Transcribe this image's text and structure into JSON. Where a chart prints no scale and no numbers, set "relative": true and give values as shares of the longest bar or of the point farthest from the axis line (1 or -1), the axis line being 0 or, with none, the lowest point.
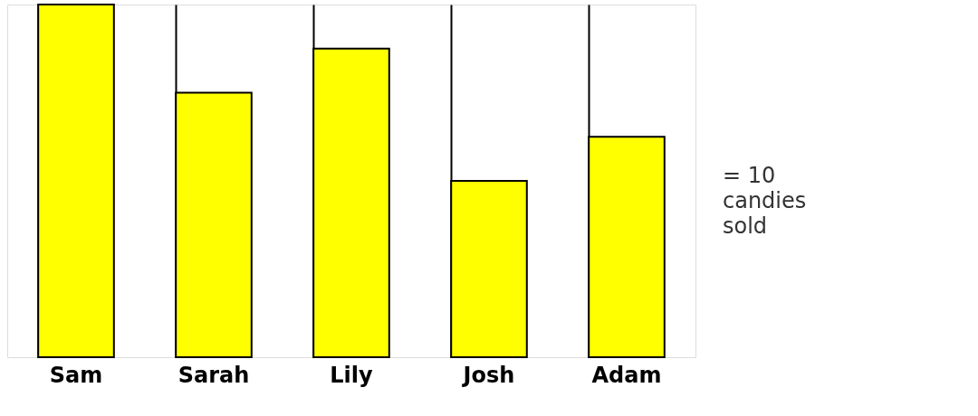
{
  "chart_data": {
    "type": "bar",
    "relative": true,
    "categories": [
      "Sam",
      "Sarah",
      "Lily",
      "Josh",
      "Adam"
    ],
    "values": [
      1,
      0.75,
      0.875,
      0.5,
      0.625
    ],
    "color": "#ffff00",
    "grid": "x",
    "annotations": [
      "= 10\ncandies\nsold"
    ]
  }
}
